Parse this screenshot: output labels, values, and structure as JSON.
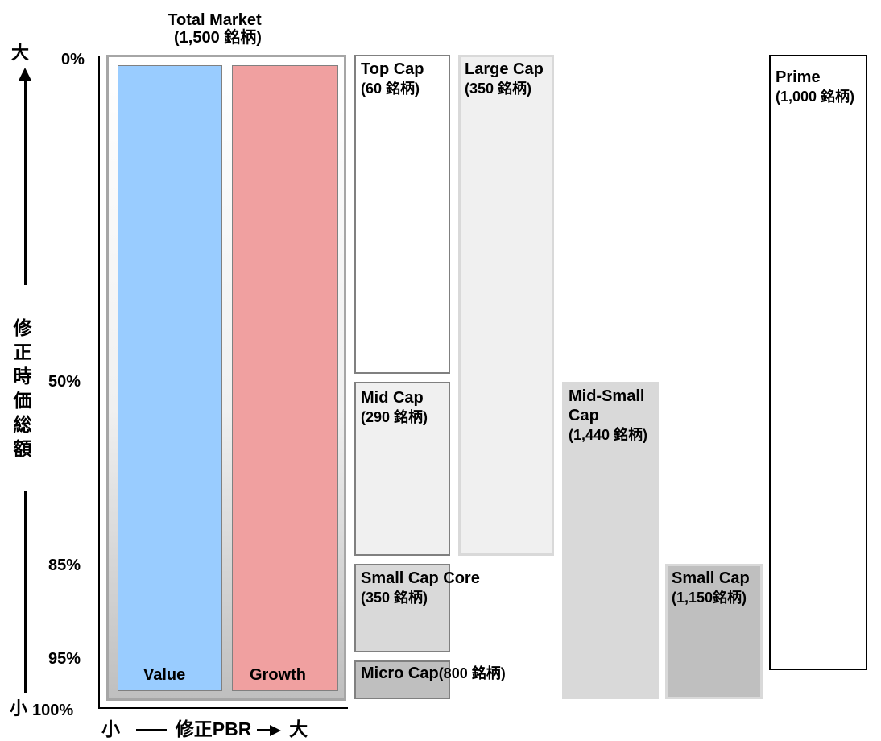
{
  "y_axis": {
    "top_marker": "大",
    "bottom_marker": "小",
    "label_chars": [
      "修",
      "正",
      "時",
      "価",
      "総",
      "額"
    ],
    "ticks": [
      "0%",
      "50%",
      "85%",
      "95%",
      "100%"
    ]
  },
  "x_axis": {
    "left_marker": "小",
    "label": "修正PBR",
    "right_marker": "大"
  },
  "total_market": {
    "title": "Total Market",
    "count": "(1,500 銘柄)",
    "value_label": "Value",
    "growth_label": "Growth"
  },
  "segments": {
    "top_cap": {
      "name": "Top Cap",
      "count": "(60 銘柄)"
    },
    "mid_cap": {
      "name": "Mid Cap",
      "count": "(290 銘柄)"
    },
    "small_cap_core": {
      "name": "Small Cap Core",
      "count": "(350 銘柄)"
    },
    "micro_cap": {
      "name": "Micro Cap",
      "count": "(800 銘柄)"
    },
    "large_cap": {
      "name": "Large Cap",
      "count": "(350 銘柄)"
    },
    "mid_small_cap": {
      "line1": "Mid-Small",
      "line2": "Cap",
      "count": "(1,440 銘柄)"
    },
    "small_cap": {
      "name": "Small Cap",
      "count": "(1,150銘柄)"
    },
    "prime": {
      "name": "Prime",
      "count": "(1,000 銘柄)"
    }
  },
  "colors": {
    "value": "#99ccff",
    "growth": "#f0a0a0",
    "light_gray": "#f0f0f0",
    "mid_gray": "#d9d9d9",
    "dark_gray": "#bfbfbf",
    "border_gray": "#808080"
  }
}
